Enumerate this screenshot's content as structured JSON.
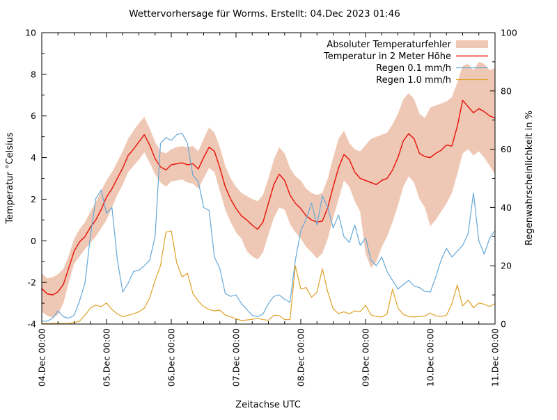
{
  "title": "Wettervorhersage für Worms. Erstellt: 04.Dec 2023 01:46",
  "axes": {
    "left": {
      "label": "Temperatur °Celsius",
      "ticks": [
        10,
        8,
        6,
        4,
        2,
        0,
        -2,
        -4
      ],
      "range": [
        -4,
        10
      ]
    },
    "right": {
      "label": "Regenwahrscheinlichkeit in %",
      "ticks": [
        100,
        80,
        60,
        40,
        20,
        0
      ],
      "range": [
        0,
        100
      ]
    },
    "x": {
      "label": "Zeitachse UTC",
      "tick_labels": [
        "04.Dec 00:00",
        "05.Dec 00:00",
        "06.Dec 00:00",
        "07.Dec 00:00",
        "08.Dec 00:00",
        "09.Dec 00:00",
        "10.Dec 00:00",
        "11.Dec 00:00"
      ]
    }
  },
  "legend": [
    {
      "label": "Absoluter Temperaturfehler",
      "swatch": "band"
    },
    {
      "label": "Temperatur in 2 Meter Höhe",
      "swatch": "line-red"
    },
    {
      "label": "Regen 0.1 mm/h",
      "swatch": "line-blue"
    },
    {
      "label": "Regen 1.0 mm/h",
      "swatch": "line-orange"
    }
  ],
  "chart_data": {
    "type": "line",
    "x_start_label": "04.Dec 00:00",
    "x_end_label": "11.Dec 00:00",
    "hours_total": 168,
    "step_hours": 2,
    "temp_range": [
      -4,
      10
    ],
    "rain_range": [
      0,
      100
    ],
    "grid": false,
    "legend_position": "top-right",
    "colors": {
      "band": "#efc8b5",
      "red": "#e8190f",
      "blue": "#64a8d8",
      "orange": "#dfa126"
    },
    "series": [
      {
        "name": "Absoluter Temperaturfehler",
        "axis": "temp",
        "kind": "band",
        "upper": [
          -1.55,
          -1.8,
          -1.75,
          -1.6,
          -1.35,
          -0.7,
          0.1,
          0.55,
          0.9,
          1.4,
          1.85,
          2.4,
          2.9,
          3.3,
          3.8,
          4.3,
          4.9,
          5.3,
          5.65,
          5.95,
          5.4,
          4.75,
          4.3,
          4.2,
          4.4,
          4.5,
          4.55,
          4.5,
          4.55,
          4.3,
          4.9,
          5.45,
          5.2,
          4.5,
          3.6,
          3.0,
          2.6,
          2.3,
          2.15,
          2.0,
          1.9,
          2.2,
          3.0,
          3.9,
          4.5,
          4.2,
          3.5,
          3.1,
          2.9,
          2.5,
          2.3,
          2.2,
          2.3,
          3.0,
          4.0,
          4.9,
          5.3,
          4.7,
          4.4,
          4.3,
          4.6,
          4.9,
          5.0,
          5.1,
          5.2,
          5.6,
          6.1,
          6.8,
          7.1,
          6.8,
          6.1,
          5.9,
          6.4,
          6.5,
          6.6,
          6.7,
          6.9,
          7.6,
          8.4,
          8.5,
          8.2,
          8.6,
          8.5,
          8.2,
          8.3
        ],
        "lower": [
          -3.4,
          -3.6,
          -3.7,
          -3.55,
          -3.0,
          -2.0,
          -1.1,
          -0.75,
          -0.4,
          -0.1,
          0.2,
          0.6,
          1.0,
          1.6,
          2.2,
          2.7,
          3.3,
          3.6,
          3.9,
          4.25,
          3.75,
          3.2,
          2.8,
          2.6,
          2.85,
          2.9,
          2.95,
          2.8,
          2.75,
          2.5,
          3.0,
          3.5,
          3.3,
          2.4,
          1.5,
          0.9,
          0.4,
          0.1,
          -0.5,
          -0.75,
          -0.9,
          -0.55,
          0.3,
          1.1,
          1.6,
          1.5,
          0.8,
          0.4,
          0.1,
          -0.3,
          -0.55,
          -0.85,
          -0.6,
          0.1,
          1.1,
          2.0,
          2.9,
          2.6,
          1.9,
          1.4,
          -0.6,
          -1.3,
          -1.0,
          -0.3,
          0.2,
          0.9,
          1.7,
          2.6,
          3.1,
          2.8,
          2.0,
          1.6,
          0.7,
          1.0,
          1.4,
          1.8,
          2.3,
          3.2,
          4.2,
          4.4,
          4.1,
          4.3,
          4.0,
          3.6,
          3.2
        ]
      },
      {
        "name": "Temperatur in 2 Meter Höhe",
        "axis": "temp",
        "kind": "line",
        "width": 1.5,
        "values": [
          -2.3,
          -2.55,
          -2.6,
          -2.45,
          -2.1,
          -1.3,
          -0.5,
          -0.05,
          0.2,
          0.65,
          1.0,
          1.5,
          2.1,
          2.5,
          3.0,
          3.5,
          4.1,
          4.4,
          4.75,
          5.1,
          4.6,
          3.95,
          3.55,
          3.4,
          3.65,
          3.7,
          3.75,
          3.65,
          3.7,
          3.45,
          4.0,
          4.5,
          4.3,
          3.5,
          2.6,
          2.0,
          1.55,
          1.2,
          1.0,
          0.75,
          0.55,
          0.9,
          1.8,
          2.7,
          3.2,
          2.9,
          2.2,
          1.8,
          1.55,
          1.2,
          1.0,
          0.9,
          0.95,
          1.6,
          2.6,
          3.5,
          4.15,
          3.9,
          3.3,
          3.0,
          2.9,
          2.8,
          2.7,
          2.9,
          3.0,
          3.4,
          4.0,
          4.8,
          5.15,
          4.9,
          4.2,
          4.05,
          4.0,
          4.2,
          4.35,
          4.6,
          4.55,
          5.5,
          6.75,
          6.45,
          6.15,
          6.35,
          6.2,
          6.0,
          5.9
        ]
      },
      {
        "name": "Regen 0.1 mm/h",
        "axis": "rain",
        "kind": "line",
        "width": 1.2,
        "values": [
          1,
          1,
          2,
          4.5,
          2.5,
          2,
          3,
          8,
          14,
          30,
          43,
          46,
          38,
          40,
          22,
          11,
          14,
          18,
          18.5,
          20,
          22,
          30,
          62,
          64,
          63,
          65,
          65.5,
          62,
          51,
          49,
          40,
          39,
          23,
          19,
          10.5,
          9.5,
          10,
          7,
          5,
          3,
          2.5,
          3.5,
          7,
          9.5,
          10,
          8.5,
          7.5,
          22,
          32,
          36,
          41.5,
          34,
          44,
          40,
          33,
          37.5,
          30,
          28,
          34,
          27,
          29.5,
          22,
          20,
          23,
          18,
          15,
          12,
          13.5,
          15,
          13,
          12.5,
          11.2,
          11,
          16,
          22,
          26,
          23,
          25,
          27,
          31,
          45,
          28.5,
          24,
          29.5,
          32
        ]
      },
      {
        "name": "Regen 1.0 mm/h",
        "axis": "rain",
        "kind": "line",
        "width": 1.2,
        "values": [
          0,
          0,
          0,
          0,
          0,
          0,
          0.5,
          1,
          3,
          5.5,
          6.5,
          6,
          7.2,
          5,
          3.5,
          2.5,
          3,
          3.5,
          4.2,
          5.5,
          9,
          15,
          20,
          31.5,
          32,
          21,
          16.2,
          17.4,
          10.5,
          7.9,
          6,
          5,
          4.5,
          4.8,
          3.1,
          2.5,
          1.8,
          1.2,
          1.4,
          1.6,
          2,
          1.5,
          1.3,
          3,
          2.9,
          1.5,
          1.5,
          20,
          12,
          12.5,
          9.2,
          11,
          19,
          11,
          5.2,
          3.6,
          4.2,
          3.5,
          4.5,
          4.2,
          6.5,
          3.1,
          2.6,
          2.4,
          3.5,
          12,
          5.5,
          3.3,
          2.6,
          2.4,
          2.6,
          2.8,
          3.8,
          2.8,
          2.6,
          3,
          7,
          13.4,
          6.2,
          8.2,
          5.6,
          7.2,
          6.8,
          6,
          7
        ]
      }
    ]
  }
}
